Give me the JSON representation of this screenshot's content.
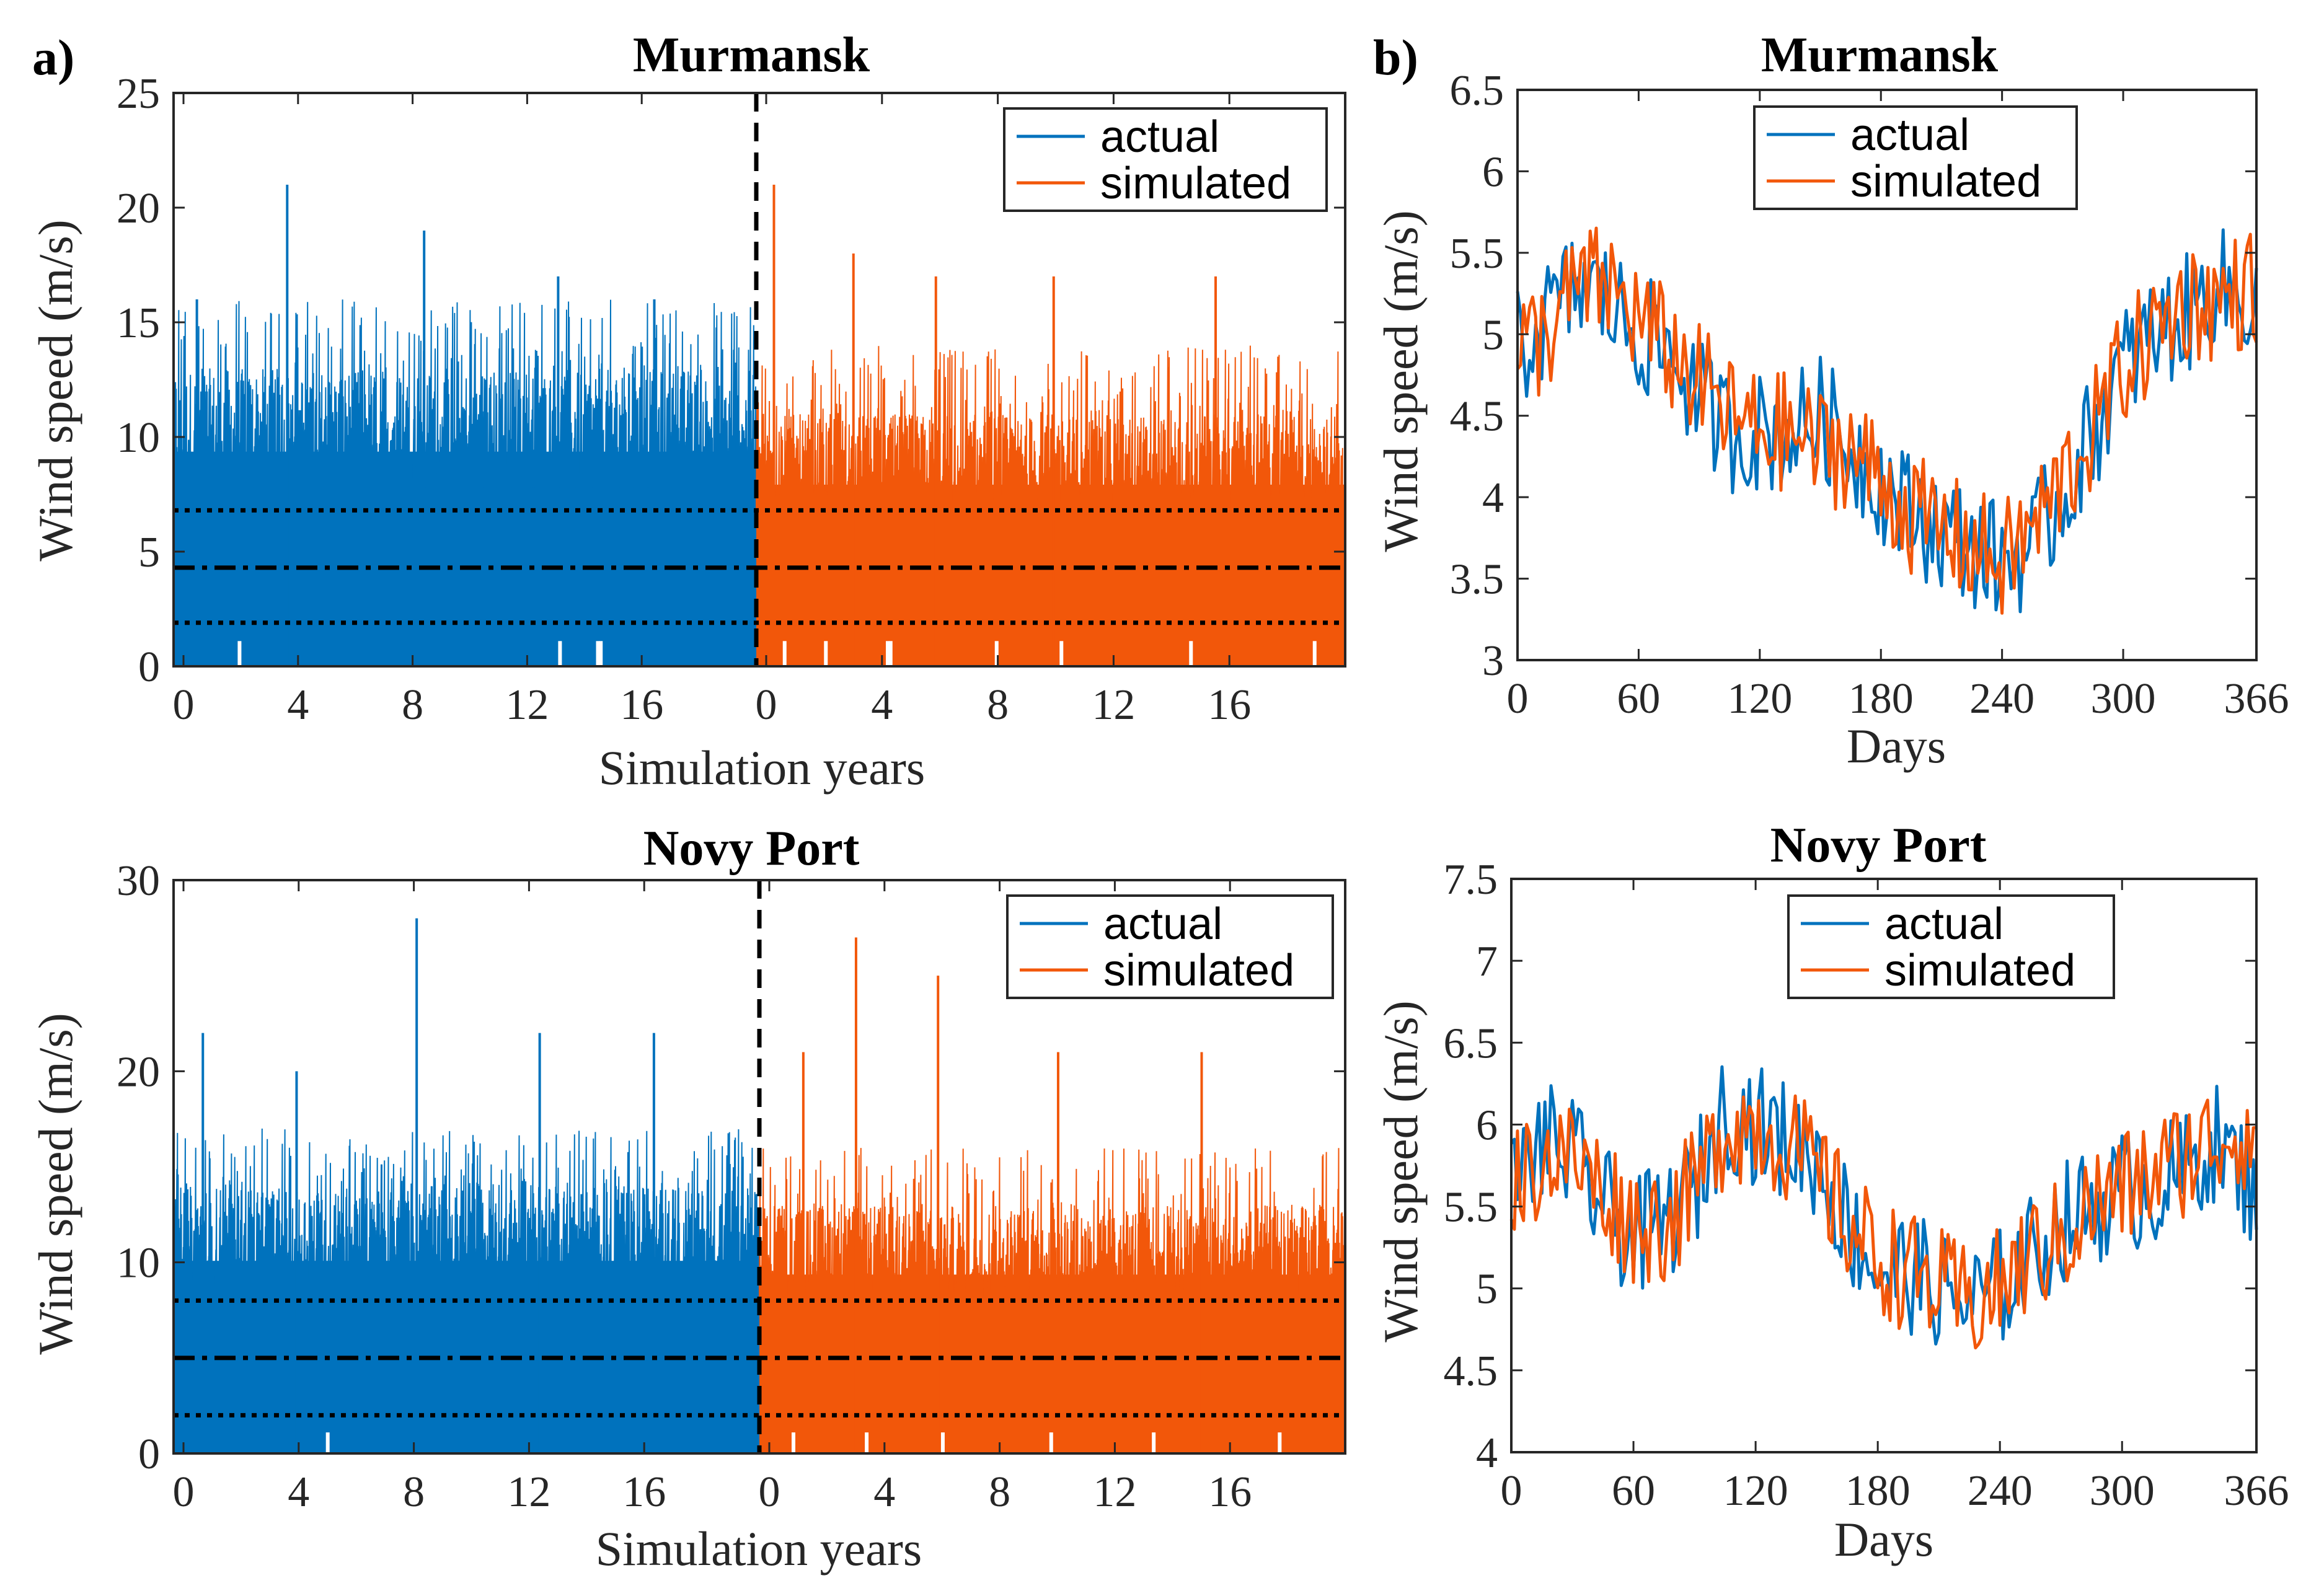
{
  "colors": {
    "actual": "#0072BD",
    "simulated": "#F2570A",
    "axis": "#262626"
  },
  "chart_data": [
    {
      "id": "a-top",
      "type": "line",
      "panel_label": "a)",
      "title": "Murmansk",
      "xlabel": "Simulation years",
      "ylabel": "Wind speed (m/s)",
      "ylim": [
        0,
        25
      ],
      "xlim_each_half": [
        -0.3,
        20
      ],
      "yticks": [
        "0",
        "5",
        "10",
        "15",
        "20",
        "25"
      ],
      "xticks": [
        "0",
        "4",
        "8",
        "12",
        "16",
        "0",
        "4",
        "8",
        "12",
        "16"
      ],
      "legend": [
        "actual",
        "simulated"
      ],
      "stats_lines": {
        "mean": 4.3,
        "lower": 1.9,
        "upper": 6.8
      },
      "series": [
        {
          "name": "actual",
          "years": 20,
          "typical_max": 13,
          "spikes": [
            [
              0.8,
              16
            ],
            [
              3.9,
              21
            ],
            [
              8.6,
              19
            ],
            [
              13.2,
              17
            ],
            [
              16.5,
              16
            ]
          ],
          "gaps": [
            13.2,
            14.5,
            2.2,
            14.6
          ]
        },
        {
          "name": "simulated",
          "years": 20,
          "typical_max": 11,
          "spikes": [
            [
              0.6,
              21
            ],
            [
              3.3,
              18
            ],
            [
              6.1,
              17
            ],
            [
              10.1,
              17
            ],
            [
              15.6,
              17
            ]
          ],
          "gaps": [
            0.9,
            2.3,
            4.4,
            4.5,
            8.1,
            10.3,
            14.7,
            18.9
          ]
        }
      ]
    },
    {
      "id": "a-bottom",
      "type": "line",
      "panel_label": "",
      "title": "Novy Port",
      "xlabel": "Simulation years",
      "ylabel": "Wind speed (m/s)",
      "ylim": [
        0,
        30
      ],
      "xlim_each_half": [
        0,
        20
      ],
      "yticks": [
        "0",
        "10",
        "20",
        "30"
      ],
      "xticks": [
        "0",
        "4",
        "8",
        "12",
        "16",
        "0",
        "4",
        "8",
        "12",
        "16"
      ],
      "legend": [
        "actual",
        "simulated"
      ],
      "stats_lines": {
        "mean": 5.0,
        "lower": 2.0,
        "upper": 8.0
      },
      "series": [
        {
          "name": "actual",
          "years": 20,
          "typical_max": 14,
          "spikes": [
            [
              1.0,
              22
            ],
            [
              4.2,
              20
            ],
            [
              8.3,
              28
            ],
            [
              12.5,
              22
            ],
            [
              16.4,
              22
            ]
          ],
          "gaps": [
            5.2
          ]
        },
        {
          "name": "simulated",
          "years": 20,
          "typical_max": 13,
          "spikes": [
            [
              1.5,
              21
            ],
            [
              3.3,
              27
            ],
            [
              6.1,
              25
            ],
            [
              10.2,
              21
            ],
            [
              15.1,
              21
            ]
          ],
          "gaps": [
            1.1,
            3.6,
            6.2,
            9.9,
            13.4,
            17.7
          ]
        }
      ]
    },
    {
      "id": "b-top",
      "type": "line",
      "panel_label": "b)",
      "title": "Murmansk",
      "xlabel": "Days",
      "ylabel": "Wind speed (m/s)",
      "xlim": [
        0,
        366
      ],
      "ylim": [
        3,
        6.5
      ],
      "xticks": [
        "0",
        "60",
        "120",
        "180",
        "240",
        "300",
        "366"
      ],
      "yticks": [
        "3",
        "3.5",
        "4",
        "4.5",
        "5",
        "5.5",
        "6",
        "6.5"
      ],
      "legend": [
        "actual",
        "simulated"
      ],
      "series": [
        {
          "name": "actual",
          "x": [
            0,
            15,
            30,
            45,
            60,
            75,
            90,
            105,
            120,
            135,
            150,
            165,
            180,
            195,
            210,
            225,
            240,
            255,
            270,
            285,
            300,
            315,
            330,
            345,
            366
          ],
          "y": [
            4.9,
            5.1,
            5.3,
            5.2,
            5.0,
            4.9,
            4.6,
            4.4,
            4.4,
            4.4,
            4.5,
            4.3,
            4.1,
            3.9,
            3.8,
            3.7,
            3.6,
            3.7,
            4.0,
            4.4,
            4.8,
            5.0,
            5.1,
            5.3,
            5.2
          ]
        },
        {
          "name": "simulated",
          "x": [
            0,
            15,
            30,
            45,
            60,
            75,
            90,
            105,
            120,
            135,
            150,
            165,
            180,
            195,
            210,
            225,
            240,
            255,
            270,
            285,
            300,
            315,
            330,
            345,
            366
          ],
          "y": [
            4.9,
            5.0,
            5.3,
            5.3,
            5.1,
            4.9,
            4.7,
            4.5,
            4.4,
            4.4,
            4.3,
            4.3,
            4.1,
            3.9,
            3.8,
            3.7,
            3.6,
            3.8,
            4.1,
            4.4,
            4.8,
            5.0,
            5.2,
            5.2,
            5.3
          ]
        }
      ]
    },
    {
      "id": "b-bottom",
      "type": "line",
      "panel_label": "",
      "title": "Novy Port",
      "xlabel": "Days",
      "ylabel": "Wind speed (m/s)",
      "xlim": [
        0,
        366
      ],
      "ylim": [
        4,
        7.5
      ],
      "xticks": [
        "0",
        "60",
        "120",
        "180",
        "240",
        "300",
        "366"
      ],
      "yticks": [
        "4",
        "4.5",
        "5",
        "5.5",
        "6",
        "6.5",
        "7",
        "7.5"
      ],
      "legend": [
        "actual",
        "simulated"
      ],
      "series": [
        {
          "name": "actual",
          "x": [
            0,
            15,
            30,
            45,
            60,
            75,
            90,
            105,
            120,
            135,
            150,
            165,
            180,
            195,
            210,
            225,
            240,
            255,
            270,
            285,
            300,
            315,
            330,
            345,
            366
          ],
          "y": [
            5.6,
            5.9,
            5.8,
            5.5,
            5.3,
            5.4,
            5.6,
            6.1,
            6.0,
            5.9,
            5.8,
            5.4,
            5.1,
            5.1,
            5.0,
            4.9,
            5.0,
            5.2,
            5.4,
            5.5,
            5.6,
            5.6,
            5.7,
            5.9,
            5.6
          ]
        },
        {
          "name": "simulated",
          "x": [
            0,
            15,
            30,
            45,
            60,
            75,
            90,
            105,
            120,
            135,
            150,
            165,
            180,
            195,
            210,
            225,
            240,
            255,
            270,
            285,
            300,
            315,
            330,
            345,
            366
          ],
          "y": [
            5.6,
            5.8,
            5.8,
            5.6,
            5.4,
            5.4,
            5.6,
            6.0,
            6.0,
            5.9,
            5.7,
            5.4,
            5.2,
            5.1,
            5.0,
            4.9,
            5.0,
            5.2,
            5.3,
            5.5,
            5.6,
            5.7,
            5.8,
            5.9,
            6.0
          ]
        }
      ]
    }
  ]
}
